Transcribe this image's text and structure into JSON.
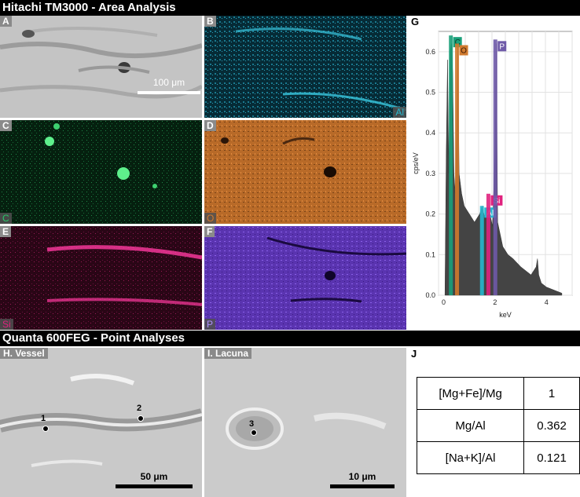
{
  "title_top": "Hitachi TM3000 - Area Analysis",
  "title_bottom": "Quanta 600FEG - Point Analyses",
  "panels": {
    "A": {
      "letter": "A",
      "scale_text": "100 μm"
    },
    "B": {
      "letter": "B",
      "element": "Al",
      "color": "#27b8cf"
    },
    "C": {
      "letter": "C",
      "element": "C",
      "color": "#28c868"
    },
    "D": {
      "letter": "D",
      "element": "O",
      "color": "#d07a2e"
    },
    "E": {
      "letter": "E",
      "element": "Si",
      "color": "#e0227e"
    },
    "F": {
      "letter": "F",
      "element": "P",
      "color": "#7a4ad0"
    },
    "H": {
      "label": "H. Vessel",
      "scale_text": "50 μm",
      "points": [
        "1",
        "2"
      ]
    },
    "I": {
      "label": "I. Lacuna",
      "scale_text": "10 μm",
      "points": [
        "3"
      ]
    }
  },
  "chart_data": {
    "type": "line",
    "label": "G",
    "xlabel": "keV",
    "ylabel": "cps/eV",
    "xlim": [
      -0.2,
      5
    ],
    "ylim": [
      0,
      0.65
    ],
    "xticks": [
      0,
      2,
      4
    ],
    "yticks": [
      0.0,
      0.1,
      0.2,
      0.3,
      0.4,
      0.5,
      0.6
    ],
    "ytick_labels": [
      "0.0",
      "0.1",
      "0.2",
      "0.3",
      "0.4",
      "0.5",
      "0.6"
    ],
    "grid": true,
    "spectrum": {
      "x": [
        0.05,
        0.1,
        0.15,
        0.2,
        0.25,
        0.3,
        0.35,
        0.4,
        0.45,
        0.5,
        0.55,
        0.6,
        0.7,
        0.8,
        0.9,
        1.0,
        1.1,
        1.2,
        1.3,
        1.4,
        1.5,
        1.6,
        1.7,
        1.8,
        1.9,
        2.0,
        2.05,
        2.1,
        2.2,
        2.3,
        2.5,
        2.7,
        3.0,
        3.2,
        3.4,
        3.5,
        3.6,
        3.65,
        3.7,
        3.8,
        4.0,
        4.2,
        4.4,
        4.6
      ],
      "y": [
        0.0,
        0.35,
        0.58,
        0.3,
        0.6,
        0.62,
        0.55,
        0.3,
        0.25,
        0.4,
        0.62,
        0.3,
        0.25,
        0.22,
        0.21,
        0.2,
        0.19,
        0.18,
        0.19,
        0.2,
        0.22,
        0.19,
        0.2,
        0.2,
        0.17,
        0.35,
        0.62,
        0.18,
        0.15,
        0.12,
        0.1,
        0.09,
        0.07,
        0.06,
        0.05,
        0.06,
        0.07,
        0.09,
        0.05,
        0.03,
        0.02,
        0.015,
        0.01,
        0.005
      ]
    },
    "peaks": [
      {
        "element": "C",
        "x": 0.28,
        "y": 0.64,
        "color": "#1aa07a"
      },
      {
        "element": "O",
        "x": 0.52,
        "y": 0.62,
        "color": "#d07a2e"
      },
      {
        "element": "Al",
        "x": 1.49,
        "y": 0.22,
        "color": "#27b8cf"
      },
      {
        "element": "Si",
        "x": 1.74,
        "y": 0.25,
        "color": "#e0227e"
      },
      {
        "element": "P",
        "x": 2.01,
        "y": 0.63,
        "color": "#6f5aa8"
      }
    ]
  },
  "table": {
    "label": "J",
    "rows": [
      {
        "name": "[Mg+Fe]/Mg",
        "value": "1"
      },
      {
        "name": "Mg/Al",
        "value": "0.362"
      },
      {
        "name": "[Na+K]/Al",
        "value": "0.121"
      }
    ]
  }
}
